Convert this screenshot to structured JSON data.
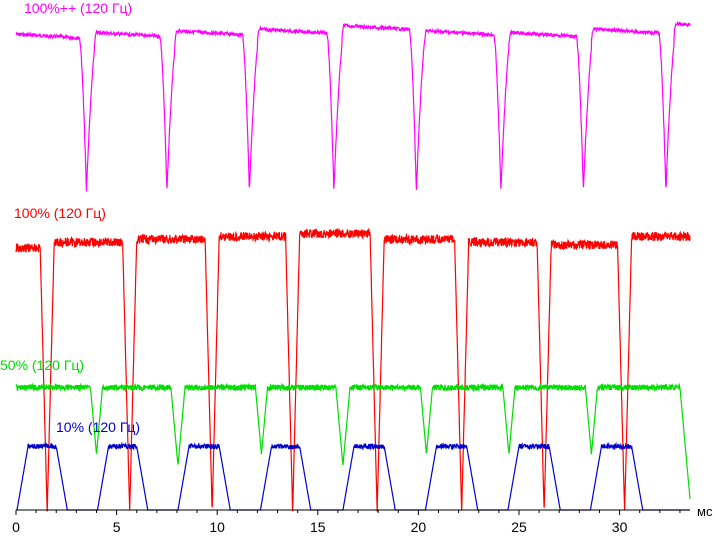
{
  "chart_data": {
    "type": "line",
    "title": "",
    "xlabel": "мс",
    "ylabel": "",
    "xlim": [
      0,
      33.5
    ],
    "grid": false,
    "legend": "none",
    "x_ticks": [
      "0",
      "5",
      "10",
      "15",
      "20",
      "25",
      "30"
    ],
    "series": [
      {
        "name": "100%++ (120 Гц)",
        "color": "#ff00ff",
        "fall_times": [
          3.5,
          7.5,
          11.6,
          15.8,
          19.9,
          24.1,
          28.2,
          32.3
        ],
        "fall_depth": 0.97,
        "high_levels": [
          0.93,
          0.94,
          0.95,
          0.96,
          0.98,
          0.95,
          0.94,
          0.96,
          0.99
        ]
      },
      {
        "name": "100% (120 Гц)",
        "color": "#ff0000",
        "high_segments": [
          [
            0,
            1.2
          ],
          [
            1.9,
            5.3
          ],
          [
            6.0,
            9.4
          ],
          [
            10.1,
            13.4
          ],
          [
            14.1,
            17.6
          ],
          [
            18.3,
            21.8
          ],
          [
            22.5,
            25.9
          ],
          [
            26.6,
            29.9
          ],
          [
            30.6,
            33.5
          ]
        ],
        "high_levels": [
          0.93,
          0.95,
          0.96,
          0.97,
          0.98,
          0.96,
          0.95,
          0.94,
          0.97
        ],
        "low_level": 0.0
      },
      {
        "name": "50% (120 Гц)",
        "color": "#00dd00",
        "high_segments": [
          [
            0,
            3.7
          ],
          [
            4.3,
            7.7
          ],
          [
            8.4,
            11.9
          ],
          [
            12.5,
            15.9
          ],
          [
            16.6,
            20.1
          ],
          [
            20.7,
            24.2
          ],
          [
            24.8,
            28.3
          ],
          [
            28.9,
            33.0
          ]
        ],
        "high_level": 0.98,
        "low_level": 0.0
      },
      {
        "name": "10% (120 Гц)",
        "color": "#0000cc",
        "high_segments": [
          [
            0.6,
            2.0
          ],
          [
            4.6,
            6.0
          ],
          [
            8.6,
            10.1
          ],
          [
            12.7,
            14.1
          ],
          [
            16.8,
            18.3
          ],
          [
            20.9,
            22.4
          ],
          [
            25.0,
            26.5
          ],
          [
            29.1,
            30.6
          ]
        ],
        "high_level": 0.95,
        "low_level": 0.0
      }
    ]
  }
}
